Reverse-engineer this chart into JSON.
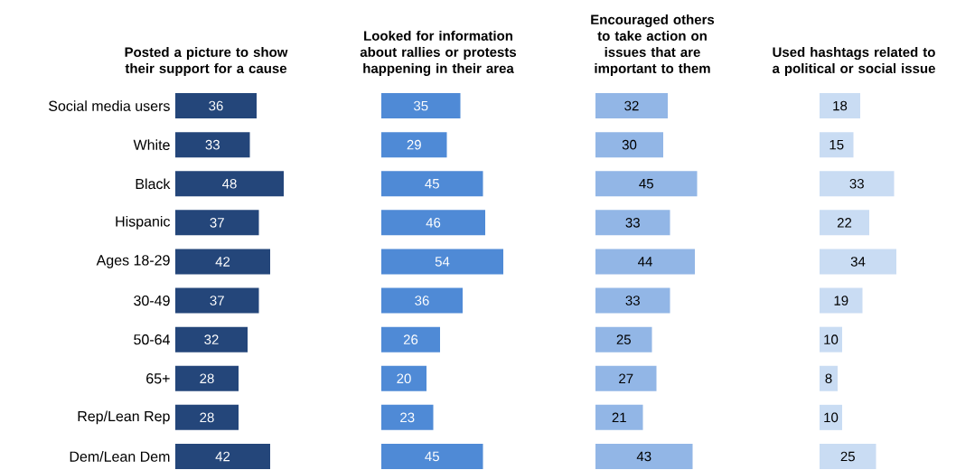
{
  "chart_data": [
    {
      "type": "bar",
      "orientation": "horizontal",
      "title": "Posted a picture to show their support for a cause",
      "categories": [
        "Social media users",
        "White",
        "Black",
        "Hispanic",
        "Ages 18-29",
        "30-49",
        "50-64",
        "65+",
        "Rep/Lean Rep",
        "Dem/Lean Dem"
      ],
      "values": [
        36,
        33,
        48,
        37,
        42,
        37,
        32,
        28,
        28,
        42
      ],
      "color": "#24467a",
      "data_labels": true,
      "tick_labels": "y"
    },
    {
      "type": "bar",
      "orientation": "horizontal",
      "title": "Looked for information about rallies or protests happening in their area",
      "categories": [
        null,
        null,
        null,
        null,
        null,
        null,
        null,
        null,
        null,
        null
      ],
      "values": [
        35,
        29,
        45,
        46,
        54,
        36,
        26,
        20,
        23,
        45
      ],
      "color": "#4f8ad6",
      "data_labels": true,
      "tick_labels": false
    },
    {
      "type": "bar",
      "orientation": "horizontal",
      "title": "Encouraged others to take action on issues that are important to them",
      "categories": [
        null,
        null,
        null,
        null,
        null,
        null,
        null,
        null,
        null,
        null
      ],
      "values": [
        32,
        30,
        45,
        33,
        44,
        33,
        25,
        27,
        21,
        43
      ],
      "color": "#92b6e6",
      "data_labels": true,
      "tick_labels": false
    },
    {
      "type": "bar",
      "orientation": "horizontal",
      "title": "Used hashtags related to a political or social issue",
      "categories": [
        null,
        null,
        null,
        null,
        null,
        null,
        null,
        null,
        null,
        null
      ],
      "values": [
        18,
        15,
        33,
        22,
        34,
        19,
        10,
        8,
        10,
        25
      ],
      "color": "#c9dcf3",
      "data_labels": true,
      "tick_labels": false
    }
  ]
}
